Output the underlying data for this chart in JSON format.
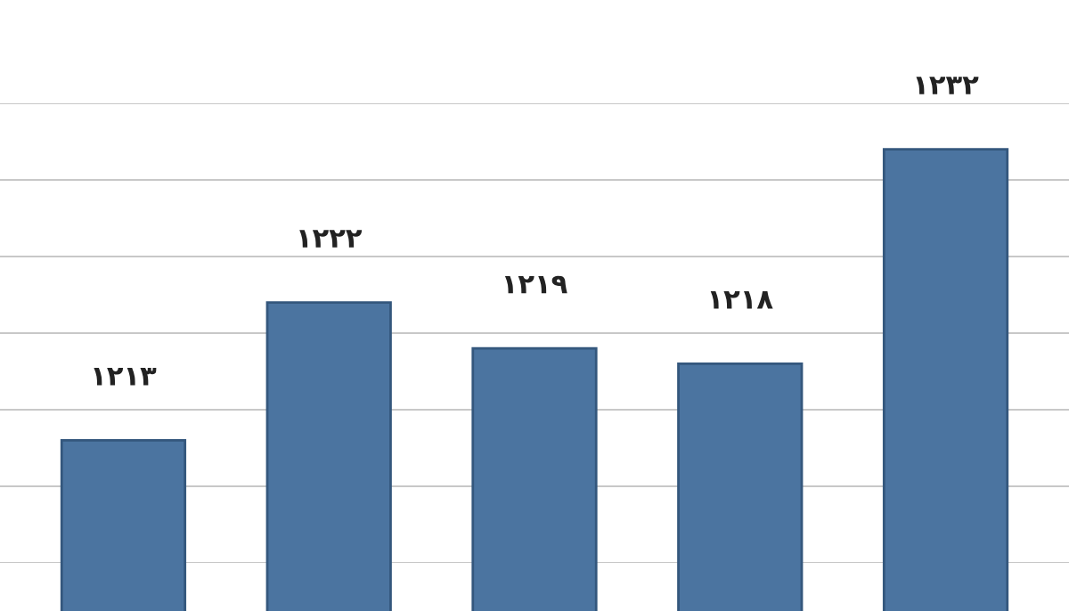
{
  "chart_data": {
    "type": "bar",
    "categories": [
      null,
      null,
      null,
      null,
      null
    ],
    "values": [
      1213,
      1222,
      1219,
      1218,
      1232
    ],
    "value_labels": [
      "۱۲۱۳",
      "۱۲۲۲",
      "۱۲۱۹",
      "۱۲۱۸",
      "۱۲۳۲"
    ],
    "color": "#4b74a0",
    "ylim": [
      1205,
      1235
    ],
    "yticks": [
      {
        "value": 1205,
        "label": null
      },
      {
        "value": 1210,
        "label": null
      },
      {
        "value": 1215,
        "label": null
      },
      {
        "value": 1220,
        "label": null
      },
      {
        "value": 1225,
        "label": null
      },
      {
        "value": 1230,
        "label": null
      },
      {
        "value": 1235,
        "label": null
      }
    ],
    "grid": "y"
  }
}
